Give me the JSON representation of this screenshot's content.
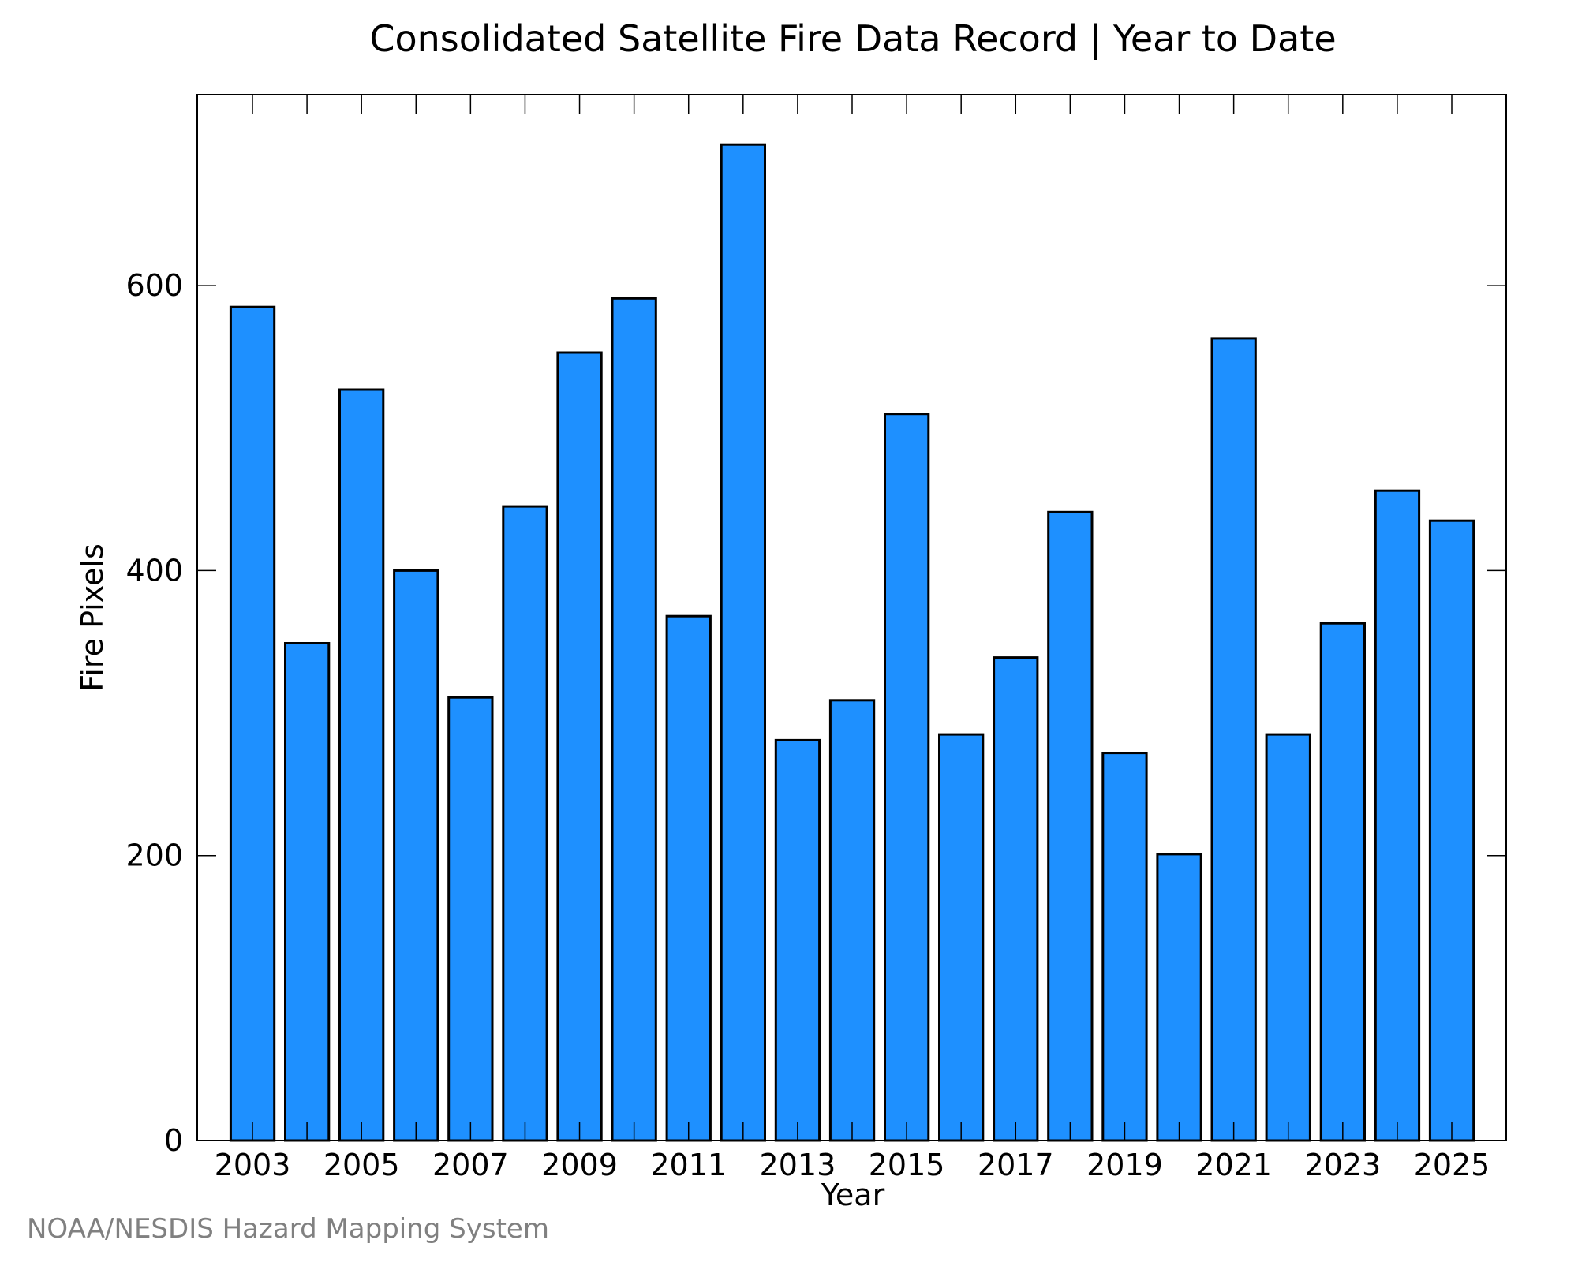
{
  "chart_data": {
    "type": "bar",
    "title": "Consolidated Satellite Fire Data Record | Year to Date",
    "xlabel": "Year",
    "ylabel": "Fire Pixels",
    "categories": [
      "2003",
      "2004",
      "2005",
      "2006",
      "2007",
      "2008",
      "2009",
      "2010",
      "2011",
      "2012",
      "2013",
      "2014",
      "2015",
      "2016",
      "2017",
      "2018",
      "2019",
      "2020",
      "2021",
      "2022",
      "2023",
      "2024",
      "2025"
    ],
    "values": [
      585,
      349,
      527,
      400,
      311,
      445,
      553,
      591,
      368,
      699,
      281,
      309,
      510,
      285,
      339,
      441,
      272,
      201,
      563,
      285,
      363,
      456,
      435
    ],
    "x_tick_labels": [
      "2003",
      "2005",
      "2007",
      "2009",
      "2011",
      "2013",
      "2015",
      "2017",
      "2019",
      "2021",
      "2023",
      "2025"
    ],
    "y_ticks": [
      0,
      200,
      400,
      600
    ],
    "ylim": [
      0,
      734
    ],
    "grid": false,
    "bar_color": "#1e90ff",
    "bar_edge_color": "#000000"
  },
  "footer": {
    "credit": "NOAA/NESDIS Hazard Mapping System"
  }
}
